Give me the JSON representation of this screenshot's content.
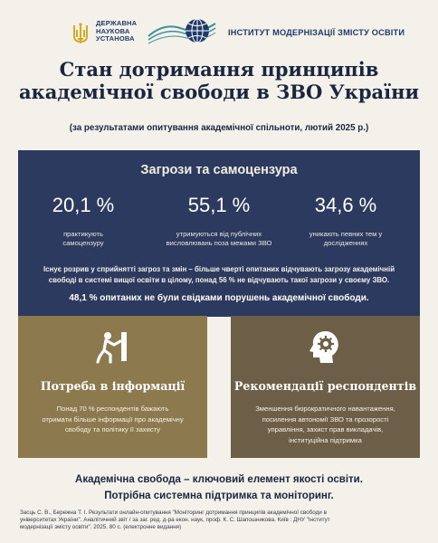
{
  "header": {
    "ds_lines": [
      "ДЕРЖАВНА",
      "НАУКОВА",
      "УСТАНОВА"
    ],
    "institute_name": "ІНСТИТУТ МОДЕРНІЗАЦІЇ ЗМІСТУ ОСВІТИ",
    "colors": {
      "brand_blue": "#1f3a6a",
      "brand_gold": "#d6a91f",
      "brand_teal": "#3d8f9a"
    }
  },
  "title_lines": [
    "Стан дотримання принципів",
    "академічної свободи в ЗВО України"
  ],
  "subtitle": "(за результатами опитування академічної спільноти, лютий 2025 р.)",
  "threats": {
    "title": "Загрози та самоцензура",
    "stats": [
      {
        "value": "20,1 %",
        "caption_lines": [
          "практикують",
          "самоцензуру"
        ]
      },
      {
        "value": "55,1 %",
        "caption_lines": [
          "утримуються від публічних",
          "висловлювань поза межами ЗВО"
        ]
      },
      {
        "value": "34,6 %",
        "caption_lines": [
          "уникають певних тем у",
          "дослідженнях"
        ]
      }
    ],
    "note_lines": [
      "Існує розрив у сприйнятті загроз та змін – більше чверті опитаних відчувають загрозу академічній",
      "свободі в системі вищої освіти в цілому,  понад 56 % не відчувають такої загрози у своєму ЗВО."
    ],
    "note2": "48,1 % опитаних не були свідками порушень академічної свободи.",
    "bg_color": "#2b3a5e"
  },
  "cards": {
    "info": {
      "icon": "person-pushing-wall-icon",
      "title": "Потреба в інформації",
      "text_lines": [
        "Понад 70 % респондентів бажають",
        "отримати більше інформації про академічну",
        "свободу та політику її захисту"
      ],
      "bg_color": "#8c7a4e"
    },
    "recs": {
      "icon": "head-gear-icon",
      "title": "Рекомендації респондентів",
      "text_lines": [
        "Зменшення бюрократичного навантаження,",
        "посилення автономії ЗВО та прозорості",
        "управління,  захист прав викладачів,",
        "інституційна підтримка"
      ],
      "bg_color": "#6d5f47"
    }
  },
  "conclusion_lines": [
    "Академічна свобода – ключовий елемент якості освіти.",
    "Потрібна системна підтримка та моніторинг."
  ],
  "source_lines": [
    "Засць С. В., Бережна Т. І. Результати онлайн-опитування \"Моніторинг дотримання принципів академічної свободи в",
    "університетах України\". Аналітичний звіт / за заг. ред. д-ра екон. наук, проф. К. С. Шапошникова. Київ : ДНУ \"Інститут",
    "модернізації змісту освіти\". 2025. 80 с. (електронне видання)"
  ]
}
